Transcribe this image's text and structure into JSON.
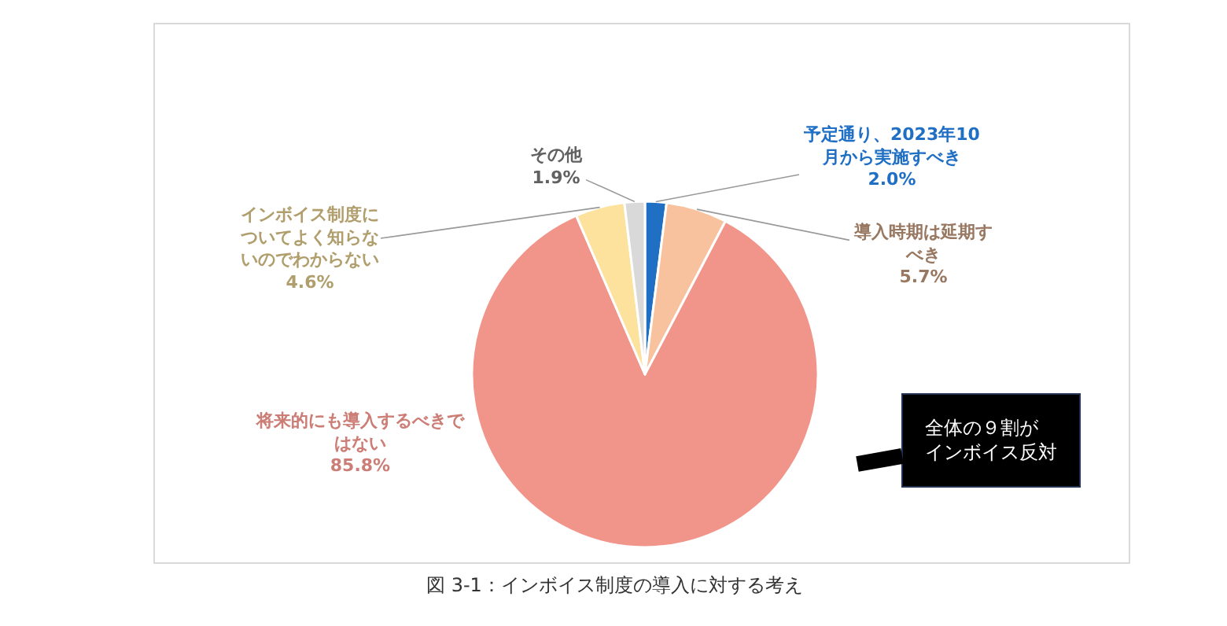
{
  "chart_data": {
    "type": "pie",
    "categories": [
      "予定通り、2023年10月から実施すべき",
      "導入時期は延期すべき",
      "将来的にも導入するべきではない",
      "インボイス制度についてよく知らないのでわからない",
      "その他"
    ],
    "values": [
      2.0,
      5.7,
      85.8,
      4.6,
      1.9
    ],
    "colors": [
      "#1f6fc5",
      "#f8c29e",
      "#f1948a",
      "#fce29c",
      "#d9d9d9"
    ],
    "value_labels": [
      "2.0%",
      "5.7%",
      "85.8%",
      "4.6%",
      "1.9%"
    ],
    "legend": false,
    "annotations": [
      "全体の９割がインボイス反対",
      "図 3-1：インボイス制度の導入に対する考え"
    ]
  }
}
